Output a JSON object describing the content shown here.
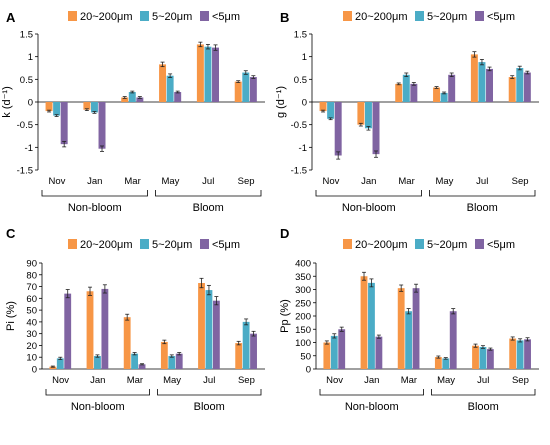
{
  "colors": {
    "large": "#F79646",
    "mid": "#4BACC6",
    "small": "#8064A2"
  },
  "chart_data": [
    {
      "panel": "A",
      "type": "bar",
      "ylabel": "k (d⁻¹)",
      "ylim": [
        -1.5,
        1.5
      ],
      "yticks": [
        "-1.5",
        "-1",
        "-0.5",
        "0",
        "0.5",
        "1",
        "1.5"
      ],
      "categories": [
        "Nov",
        "Jan",
        "Mar",
        "May",
        "Jul",
        "Sep"
      ],
      "groups": [
        {
          "label": "Non-bloom",
          "span": [
            0,
            2
          ]
        },
        {
          "label": "Bloom",
          "span": [
            3,
            5
          ]
        }
      ],
      "series": [
        {
          "name": "20~200μm",
          "values": [
            -0.2,
            -0.17,
            0.1,
            0.83,
            1.27,
            0.45
          ],
          "err": [
            0.02,
            0.02,
            0.02,
            0.05,
            0.05,
            0.02
          ]
        },
        {
          "name": "5~20μm",
          "values": [
            -0.3,
            -0.23,
            0.22,
            0.58,
            1.22,
            0.65
          ],
          "err": [
            0.02,
            0.02,
            0.02,
            0.04,
            0.05,
            0.04
          ]
        },
        {
          "name": "<5μm",
          "values": [
            -0.93,
            -1.03,
            0.1,
            0.22,
            1.2,
            0.55
          ],
          "err": [
            0.06,
            0.06,
            0.02,
            0.02,
            0.06,
            0.03
          ]
        }
      ]
    },
    {
      "panel": "B",
      "type": "bar",
      "ylabel": "g (d⁻¹)",
      "ylim": [
        -1.5,
        1.5
      ],
      "yticks": [
        "-1.5",
        "-1",
        "-0.5",
        "0",
        "0.5",
        "1",
        "1.5"
      ],
      "categories": [
        "Nov",
        "Jan",
        "Mar",
        "May",
        "Jul",
        "Sep"
      ],
      "groups": [
        {
          "label": "Non-bloom",
          "span": [
            0,
            2
          ]
        },
        {
          "label": "Bloom",
          "span": [
            3,
            5
          ]
        }
      ],
      "series": [
        {
          "name": "20~200μm",
          "values": [
            -0.2,
            -0.5,
            0.4,
            0.32,
            1.05,
            0.55
          ],
          "err": [
            0.02,
            0.03,
            0.02,
            0.02,
            0.06,
            0.03
          ]
        },
        {
          "name": "5~20μm",
          "values": [
            -0.37,
            -0.58,
            0.6,
            0.2,
            0.88,
            0.75
          ],
          "err": [
            0.02,
            0.04,
            0.04,
            0.02,
            0.06,
            0.04
          ]
        },
        {
          "name": "<5μm",
          "values": [
            -1.18,
            -1.15,
            0.4,
            0.6,
            0.73,
            0.65
          ],
          "err": [
            0.08,
            0.07,
            0.03,
            0.04,
            0.04,
            0.03
          ]
        }
      ]
    },
    {
      "panel": "C",
      "type": "bar",
      "ylabel": "Pi (%)",
      "ylim": [
        0,
        90
      ],
      "yticks": [
        "0",
        "10",
        "20",
        "30",
        "40",
        "50",
        "60",
        "70",
        "80",
        "90"
      ],
      "categories": [
        "Nov",
        "Jan",
        "Mar",
        "May",
        "Jul",
        "Sep"
      ],
      "groups": [
        {
          "label": "Non-bloom",
          "span": [
            0,
            2
          ]
        },
        {
          "label": "Bloom",
          "span": [
            3,
            5
          ]
        }
      ],
      "series": [
        {
          "name": "20~200μm",
          "values": [
            2,
            66,
            44,
            23,
            73,
            22
          ],
          "err": [
            0.5,
            3.5,
            2.5,
            1.5,
            4,
            1.5
          ]
        },
        {
          "name": "5~20μm",
          "values": [
            9,
            11,
            13,
            11,
            67,
            40
          ],
          "err": [
            1,
            1,
            1,
            1,
            4,
            2.5
          ]
        },
        {
          "name": "<5μm",
          "values": [
            64,
            68,
            4,
            13,
            58,
            30
          ],
          "err": [
            3.5,
            3.5,
            0.5,
            1,
            3.5,
            2
          ]
        }
      ]
    },
    {
      "panel": "D",
      "type": "bar",
      "ylabel": "Pp (%)",
      "ylim": [
        0,
        400
      ],
      "yticks": [
        "0",
        "50",
        "100",
        "150",
        "200",
        "250",
        "300",
        "350",
        "400"
      ],
      "categories": [
        "Nov",
        "Jan",
        "Mar",
        "May",
        "Jul",
        "Sep"
      ],
      "groups": [
        {
          "label": "Non-bloom",
          "span": [
            0,
            2
          ]
        },
        {
          "label": "Bloom",
          "span": [
            3,
            5
          ]
        }
      ],
      "series": [
        {
          "name": "20~200μm",
          "values": [
            100,
            350,
            305,
            45,
            88,
            115
          ],
          "err": [
            6,
            15,
            12,
            4,
            6,
            6
          ]
        },
        {
          "name": "5~20μm",
          "values": [
            125,
            325,
            218,
            40,
            83,
            108
          ],
          "err": [
            8,
            15,
            10,
            3,
            5,
            6
          ]
        },
        {
          "name": "<5μm",
          "values": [
            150,
            122,
            305,
            218,
            75,
            112
          ],
          "err": [
            8,
            6,
            15,
            10,
            4,
            6
          ]
        }
      ]
    }
  ]
}
